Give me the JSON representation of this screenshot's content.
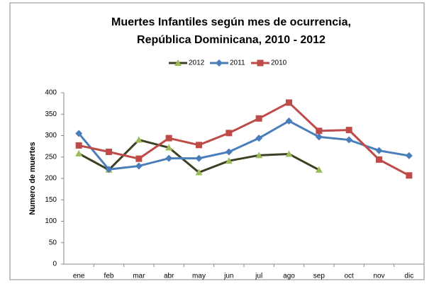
{
  "chart_data": {
    "type": "line",
    "title": [
      "Muertes Infantiles según mes de ocurrencia,",
      "República Dominicana,  2010 - 2012"
    ],
    "y_label": "Numero de muertes",
    "categories": [
      "ene",
      "feb",
      "mar",
      "abr",
      "may",
      "jun",
      "jul",
      "ago",
      "sep",
      "oct",
      "nov",
      "dic"
    ],
    "series": [
      {
        "name": "2012",
        "color": "#3f3f26",
        "marker_color": "#9bbb59",
        "marker": "triangle",
        "values": [
          258,
          220,
          290,
          272,
          214,
          241,
          254,
          257,
          220,
          null,
          null,
          null
        ]
      },
      {
        "name": "2011",
        "color": "#4a7ebb",
        "marker_color": "#4a7ebb",
        "marker": "diamond",
        "values": [
          305,
          221,
          229,
          247,
          247,
          262,
          294,
          334,
          297,
          290,
          265,
          253
        ]
      },
      {
        "name": "2010",
        "color": "#be4b48",
        "marker_color": "#be4b48",
        "marker": "square",
        "values": [
          277,
          262,
          246,
          294,
          278,
          306,
          340,
          377,
          311,
          313,
          244,
          207
        ]
      }
    ],
    "ylim": [
      0,
      400
    ],
    "yticks": [
      0,
      50,
      100,
      150,
      200,
      250,
      300,
      350,
      400
    ],
    "grid": false,
    "legend": "top"
  }
}
